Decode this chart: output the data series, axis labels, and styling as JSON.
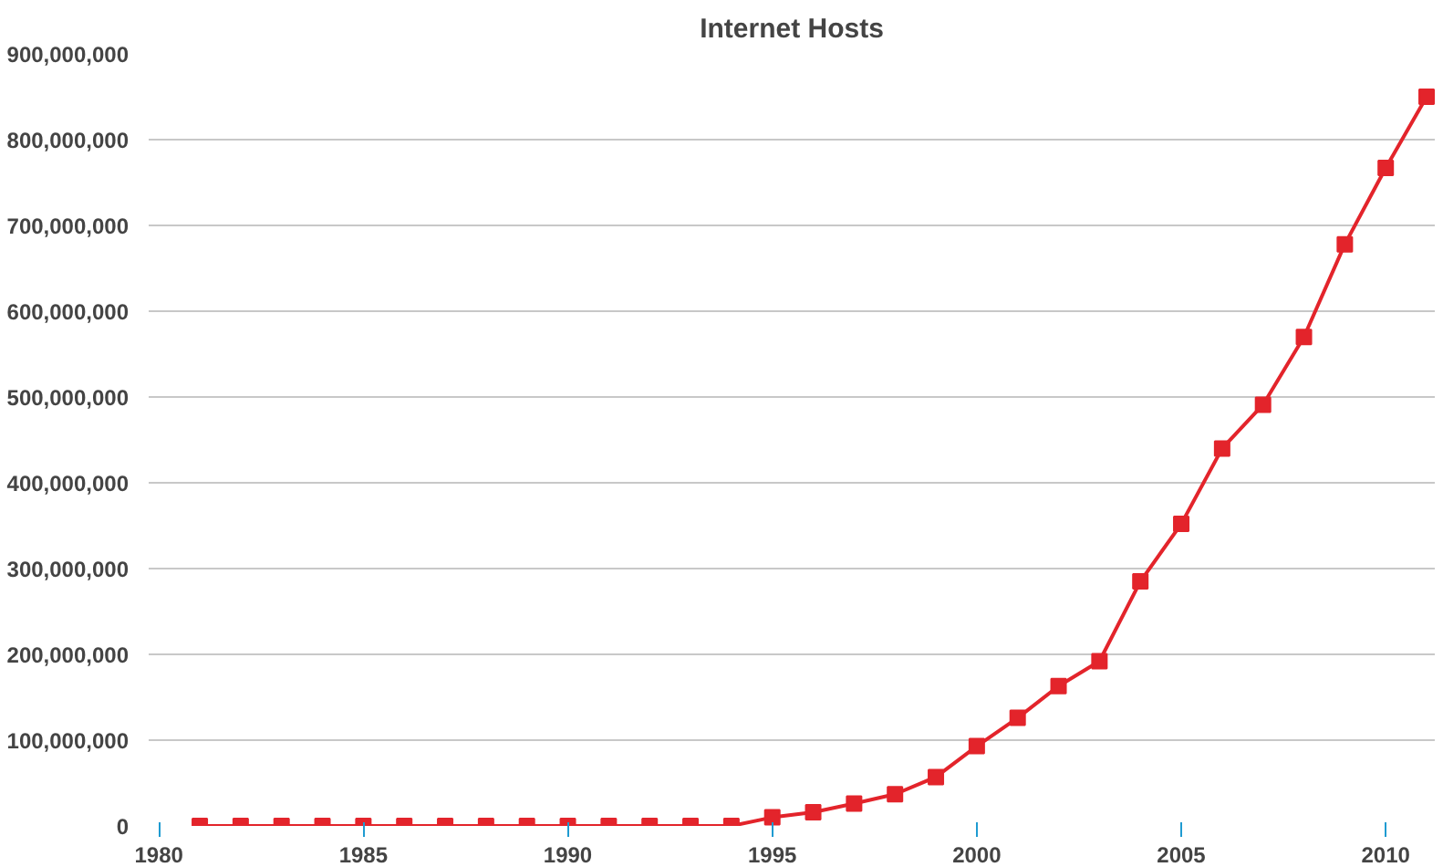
{
  "chart_data": {
    "type": "line",
    "title": "Internet Hosts",
    "x": [
      1981,
      1982,
      1983,
      1984,
      1985,
      1986,
      1987,
      1988,
      1989,
      1990,
      1991,
      1992,
      1993,
      1994,
      1995,
      1996,
      1997,
      1998,
      1999,
      2000,
      2001,
      2002,
      2003,
      2004,
      2005,
      2006,
      2007,
      2008,
      2009,
      2010,
      2011
    ],
    "series": [
      {
        "color": "#e3242b",
        "values": [
          0,
          0,
          0,
          0,
          0,
          0,
          0,
          0,
          0,
          0,
          0,
          0,
          0,
          0,
          10000000,
          16000000,
          26000000,
          37000000,
          57000000,
          93000000,
          126000000,
          163000000,
          192000000,
          285000000,
          352000000,
          440000000,
          491000000,
          570000000,
          678000000,
          767000000,
          850000000
        ]
      }
    ],
    "xlim": [
      1979.75,
      2011.2
    ],
    "xticks": [
      1980,
      1985,
      1990,
      1995,
      2000,
      2005,
      2010
    ],
    "ylim": [
      0,
      900000000
    ],
    "yticks": [
      {
        "value": 0,
        "label": "0"
      },
      {
        "value": 100000000,
        "label": "100,000,000"
      },
      {
        "value": 200000000,
        "label": "200,000,000"
      },
      {
        "value": 300000000,
        "label": "300,000,000"
      },
      {
        "value": 400000000,
        "label": "400,000,000"
      },
      {
        "value": 500000000,
        "label": "500,000,000"
      },
      {
        "value": 600000000,
        "label": "600,000,000"
      },
      {
        "value": 700000000,
        "label": "700,000,000"
      },
      {
        "value": 800000000,
        "label": "800,000,000"
      },
      {
        "value": 900000000,
        "label": "900,000,000"
      }
    ],
    "grid": "y",
    "marker": "square",
    "line_style": "solid"
  }
}
